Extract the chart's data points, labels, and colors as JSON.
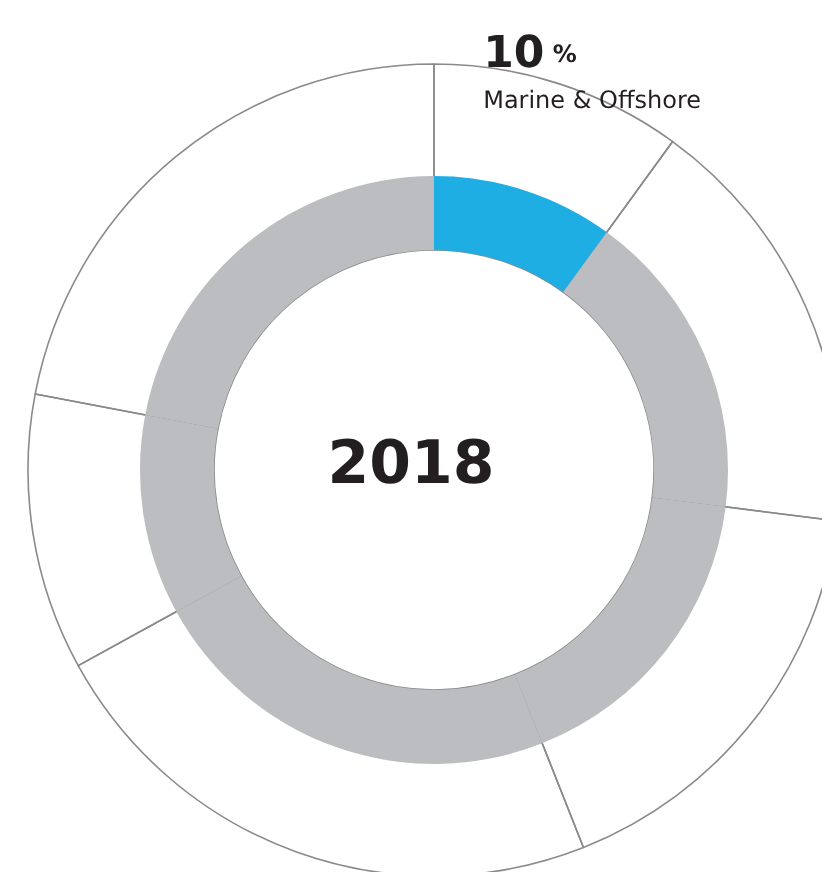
{
  "chart_data": {
    "type": "donut",
    "title": "2018",
    "categories": [
      "Marine & Offshore",
      null,
      null,
      null,
      null,
      null
    ],
    "values": [
      10,
      17,
      17,
      23,
      11,
      22
    ],
    "colors": [
      "#1eaee4",
      "#bcbdc0",
      "#bcbdc0",
      "#bcbdc0",
      "#bcbdc0",
      "#bcbdc0"
    ],
    "value_labels": [
      "10%",
      null,
      null,
      null,
      null,
      null
    ],
    "legend": false
  }
}
